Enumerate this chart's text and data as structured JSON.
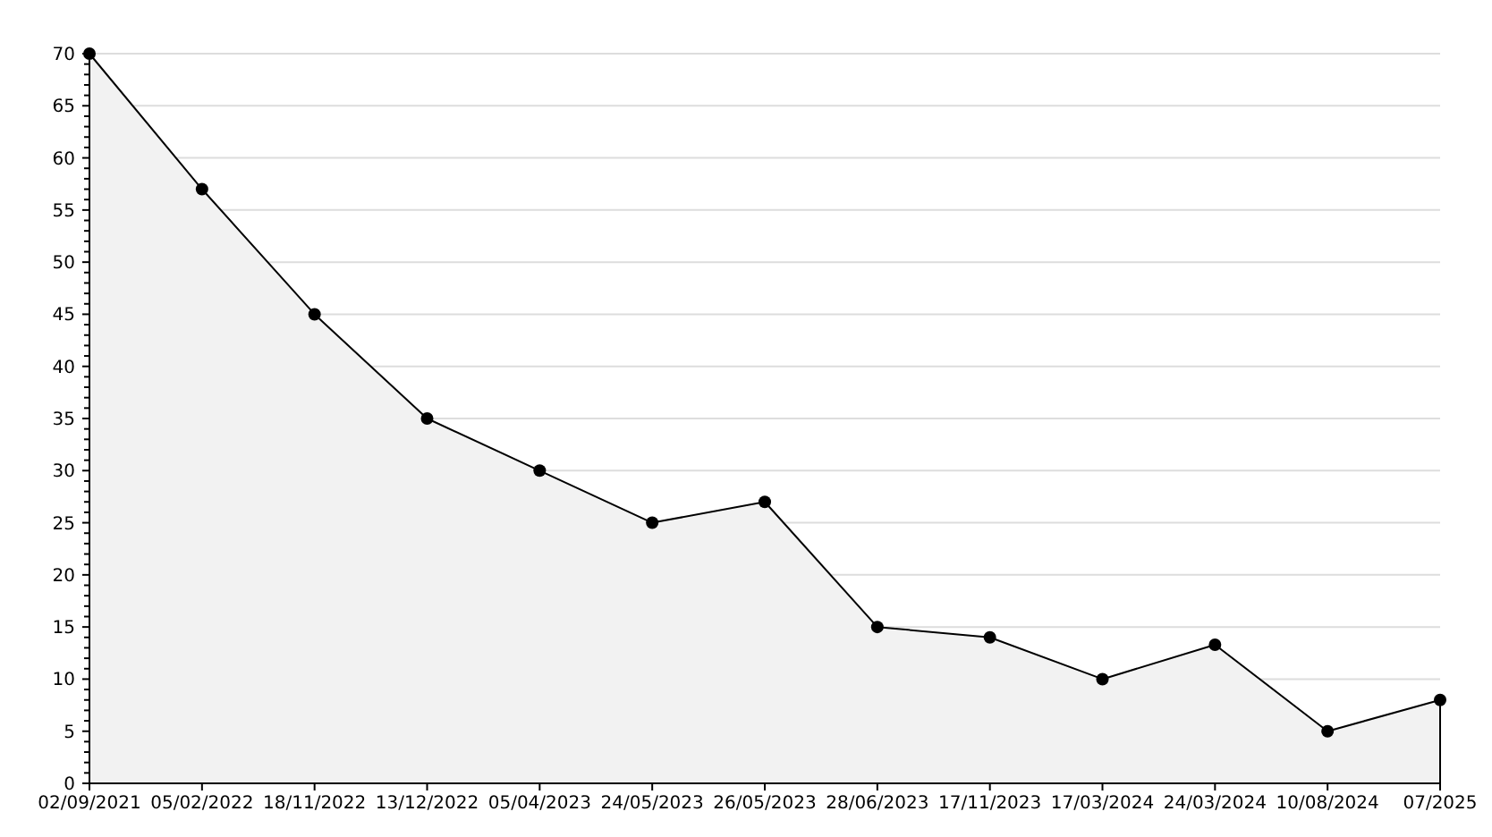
{
  "chart_data": {
    "type": "area",
    "categories": [
      "02/09/2021",
      "05/02/2022",
      "18/11/2022",
      "13/12/2022",
      "05/04/2023",
      "24/05/2023",
      "26/05/2023",
      "28/06/2023",
      "17/11/2023",
      "17/03/2024",
      "24/03/2024",
      "10/08/2024",
      "07/2025"
    ],
    "series": [
      {
        "color": "#000000",
        "values": [
          70,
          57,
          45,
          35,
          30,
          25,
          27,
          15,
          14,
          10,
          13.3,
          5,
          8
        ]
      }
    ],
    "ylim": [
      0,
      70
    ],
    "yticks": [
      0,
      {
        "value": 1,
        "label": null
      },
      {
        "value": 2,
        "label": null
      },
      {
        "value": 3,
        "label": null
      },
      {
        "value": 4,
        "label": null
      },
      5,
      {
        "value": 6,
        "label": null
      },
      {
        "value": 7,
        "label": null
      },
      {
        "value": 8,
        "label": null
      },
      {
        "value": 9,
        "label": null
      },
      10,
      {
        "value": 11,
        "label": null
      },
      {
        "value": 12,
        "label": null
      },
      {
        "value": 13,
        "label": null
      },
      {
        "value": 14,
        "label": null
      },
      15,
      {
        "value": 16,
        "label": null
      },
      {
        "value": 17,
        "label": null
      },
      {
        "value": 18,
        "label": null
      },
      {
        "value": 19,
        "label": null
      },
      20,
      {
        "value": 21,
        "label": null
      },
      {
        "value": 22,
        "label": null
      },
      {
        "value": 23,
        "label": null
      },
      {
        "value": 24,
        "label": null
      },
      25,
      {
        "value": 26,
        "label": null
      },
      {
        "value": 27,
        "label": null
      },
      {
        "value": 28,
        "label": null
      },
      {
        "value": 29,
        "label": null
      },
      30,
      {
        "value": 31,
        "label": null
      },
      {
        "value": 32,
        "label": null
      },
      {
        "value": 33,
        "label": null
      },
      {
        "value": 34,
        "label": null
      },
      35,
      {
        "value": 36,
        "label": null
      },
      {
        "value": 37,
        "label": null
      },
      {
        "value": 38,
        "label": null
      },
      {
        "value": 39,
        "label": null
      },
      40,
      {
        "value": 41,
        "label": null
      },
      {
        "value": 42,
        "label": null
      },
      {
        "value": 43,
        "label": null
      },
      {
        "value": 44,
        "label": null
      },
      45,
      {
        "value": 46,
        "label": null
      },
      {
        "value": 47,
        "label": null
      },
      {
        "value": 48,
        "label": null
      },
      {
        "value": 49,
        "label": null
      },
      50,
      {
        "value": 51,
        "label": null
      },
      {
        "value": 52,
        "label": null
      },
      {
        "value": 53,
        "label": null
      },
      {
        "value": 54,
        "label": null
      },
      55,
      {
        "value": 56,
        "label": null
      },
      {
        "value": 57,
        "label": null
      },
      {
        "value": 58,
        "label": null
      },
      {
        "value": 59,
        "label": null
      },
      60,
      {
        "value": 61,
        "label": null
      },
      {
        "value": 62,
        "label": null
      },
      {
        "value": 63,
        "label": null
      },
      {
        "value": 64,
        "label": null
      },
      65,
      {
        "value": 66,
        "label": null
      },
      {
        "value": 67,
        "label": null
      },
      {
        "value": 68,
        "label": null
      },
      {
        "value": 69,
        "label": null
      },
      70
    ],
    "grid": "y",
    "marker": "circle",
    "line_style": "solid"
  }
}
